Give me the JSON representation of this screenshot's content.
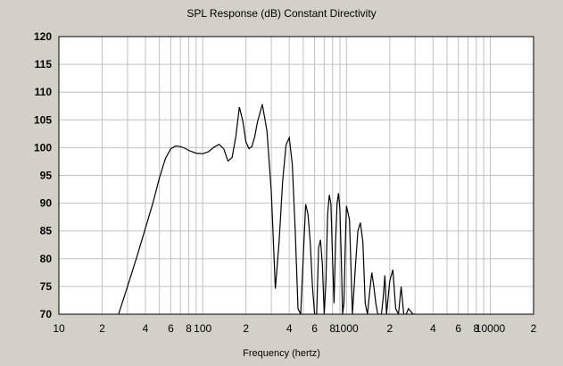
{
  "chart_data": {
    "type": "line",
    "title": "SPL Response (dB)   Constant Directivity",
    "xlabel": "Frequency (hertz)",
    "ylabel": "",
    "x_scale": "log",
    "xlim": [
      10,
      20000
    ],
    "ylim": [
      70,
      120
    ],
    "grid": true,
    "y_ticks": [
      70,
      75,
      80,
      85,
      90,
      95,
      100,
      105,
      110,
      115,
      120
    ],
    "x_tick_labels": [
      {
        "value": 10,
        "label": "10"
      },
      {
        "value": 20,
        "label": "2"
      },
      {
        "value": 40,
        "label": "4"
      },
      {
        "value": 60,
        "label": "6"
      },
      {
        "value": 80,
        "label": "8"
      },
      {
        "value": 100,
        "label": "100"
      },
      {
        "value": 200,
        "label": "2"
      },
      {
        "value": 400,
        "label": "4"
      },
      {
        "value": 600,
        "label": "6"
      },
      {
        "value": 800,
        "label": "8"
      },
      {
        "value": 1000,
        "label": "1000"
      },
      {
        "value": 2000,
        "label": "2"
      },
      {
        "value": 4000,
        "label": "4"
      },
      {
        "value": 6000,
        "label": "6"
      },
      {
        "value": 8000,
        "label": "8"
      },
      {
        "value": 10000,
        "label": "10000"
      },
      {
        "value": 20000,
        "label": "2"
      }
    ],
    "series": [
      {
        "name": "",
        "color": "#000000",
        "x": [
          26,
          30,
          35,
          40,
          45,
          50,
          55,
          60,
          65,
          70,
          75,
          80,
          90,
          100,
          110,
          120,
          130,
          140,
          150,
          160,
          170,
          180,
          190,
          200,
          210,
          220,
          230,
          240,
          260,
          280,
          300,
          320,
          340,
          360,
          380,
          400,
          420,
          440,
          460,
          480,
          500,
          520,
          540,
          560,
          580,
          600,
          620,
          640,
          660,
          680,
          700,
          720,
          740,
          760,
          780,
          800,
          820,
          840,
          860,
          880,
          900,
          920,
          940,
          960,
          980,
          1000,
          1050,
          1100,
          1150,
          1200,
          1250,
          1300,
          1350,
          1400,
          1450,
          1500,
          1550,
          1600,
          1650,
          1700,
          1750,
          1800,
          1850,
          1900,
          2000,
          2100,
          2200,
          2300,
          2400,
          2500,
          2600,
          2700,
          2800,
          2900,
          3000
        ],
        "y": [
          70,
          75,
          80.5,
          85.5,
          90,
          94.5,
          98,
          99.8,
          100.3,
          100.2,
          99.9,
          99.5,
          99,
          98.9,
          99.3,
          100.1,
          100.6,
          99.8,
          97.6,
          98.2,
          102,
          107.3,
          104.8,
          101,
          99.8,
          100.2,
          102,
          104.5,
          107.8,
          103,
          92,
          74.6,
          83,
          94,
          100.5,
          101.8,
          97,
          85,
          71,
          70,
          80,
          89.8,
          88,
          83,
          75,
          70,
          70,
          82,
          83.4,
          79,
          70,
          76,
          88,
          91.5,
          89.8,
          80,
          72,
          83,
          90,
          91.8,
          89,
          80,
          70,
          72,
          82,
          89.5,
          87,
          70,
          78,
          85,
          86.5,
          83,
          72,
          70,
          74,
          77.5,
          75,
          72,
          70,
          70,
          70,
          73,
          77,
          70,
          76,
          78,
          71,
          70,
          75,
          70,
          70,
          71,
          70.5,
          70,
          70
        ]
      }
    ]
  }
}
